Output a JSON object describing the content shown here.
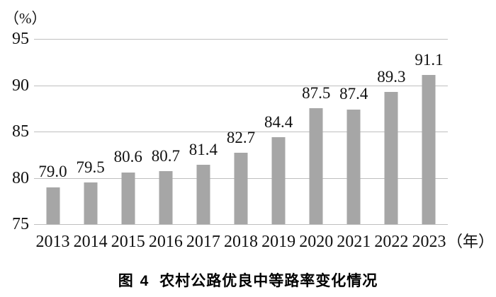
{
  "chart_data": {
    "type": "bar",
    "title": "图 4　农村公路优良中等路率变化情况",
    "unit_label": "（%）",
    "x_suffix": "（年）",
    "categories": [
      "2013",
      "2014",
      "2015",
      "2016",
      "2017",
      "2018",
      "2019",
      "2020",
      "2021",
      "2022",
      "2023"
    ],
    "values": [
      79.0,
      79.5,
      80.6,
      80.7,
      81.4,
      82.7,
      84.4,
      87.5,
      87.4,
      89.3,
      91.1
    ],
    "value_labels": [
      "79.0",
      "79.5",
      "80.6",
      "80.7",
      "81.4",
      "82.7",
      "84.4",
      "87.5",
      "87.4",
      "89.3",
      "91.1"
    ],
    "ylabel": "",
    "xlabel": "",
    "ylim": [
      75,
      95
    ],
    "yticks": [
      "95",
      "90",
      "85",
      "80",
      "75"
    ],
    "ytick_values": [
      95,
      90,
      85,
      80,
      75
    ],
    "grid": true,
    "legend": "none",
    "bar_color": "#a6a6a6",
    "gridline_color": "#bfbfbf",
    "text_color": "#111111"
  },
  "caption": {
    "figure_label": "图 4",
    "title": "农村公路优良中等路率变化情况"
  }
}
